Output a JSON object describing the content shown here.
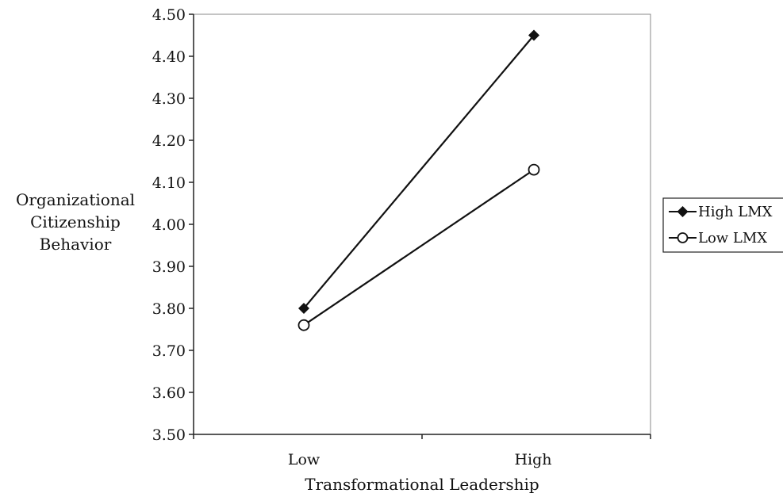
{
  "chart_data": {
    "type": "line",
    "categories": [
      "Low",
      "High"
    ],
    "series": [
      {
        "name": "High LMX",
        "values": [
          3.8,
          4.45
        ],
        "marker": "diamond-filled"
      },
      {
        "name": "Low LMX",
        "values": [
          3.76,
          4.13
        ],
        "marker": "circle-open"
      }
    ],
    "ylabel_lines": [
      "Organizational",
      "Citizenship",
      "Behavior"
    ],
    "xlabel": "Transformational Leadership",
    "ylim": [
      3.5,
      4.5
    ],
    "yticks": [
      "3.50",
      "3.60",
      "3.70",
      "3.80",
      "3.90",
      "4.00",
      "4.10",
      "4.20",
      "4.30",
      "4.40",
      "4.50"
    ],
    "legend_position": "right",
    "grid": false,
    "colors": {
      "line": "#111111",
      "axis": "#222222",
      "frame": "#888888"
    }
  }
}
